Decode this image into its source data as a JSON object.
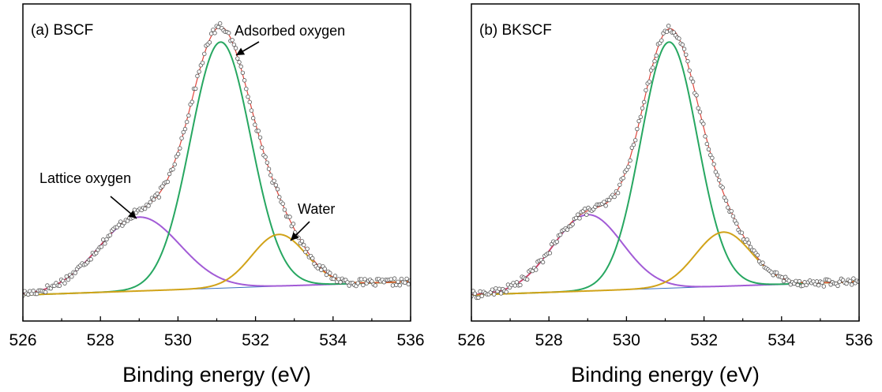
{
  "chart_data": [
    {
      "type": "line",
      "title": "(a) BSCF",
      "xlabel": "Binding energy (eV)",
      "ylabel": "",
      "xlim": [
        526,
        536
      ],
      "x_ticks": [
        "526",
        "528",
        "530",
        "532",
        "534",
        "536"
      ],
      "grid": false,
      "components": [
        {
          "label": "Lattice oxygen",
          "center": 529.0,
          "height": 0.3,
          "width": 1.05,
          "color": "#a25bd6"
        },
        {
          "label": "Adsorbed oxygen",
          "center": 531.1,
          "height": 1.0,
          "width": 0.78,
          "color": "#27a761"
        },
        {
          "label": "Water",
          "center": 532.6,
          "height": 0.21,
          "width": 0.7,
          "color": "#d1a319"
        }
      ],
      "fit_color": "#e0463c",
      "baseline_color": "#3a6fc0",
      "data_marker": "open-circle",
      "annotations": [
        "Lattice oxygen",
        "Adsorbed oxygen",
        "Water"
      ]
    },
    {
      "type": "line",
      "title": "(b) BKSCF",
      "xlabel": "Binding energy (eV)",
      "ylabel": "",
      "xlim": [
        526,
        536
      ],
      "x_ticks": [
        "526",
        "528",
        "530",
        "532",
        "534",
        "536"
      ],
      "grid": false,
      "components": [
        {
          "label": "Lattice oxygen",
          "center": 529.0,
          "height": 0.31,
          "width": 0.9,
          "color": "#a25bd6"
        },
        {
          "label": "Adsorbed oxygen",
          "center": 531.1,
          "height": 1.0,
          "width": 0.73,
          "color": "#27a761"
        },
        {
          "label": "Water",
          "center": 532.5,
          "height": 0.22,
          "width": 0.72,
          "color": "#d1a319"
        }
      ],
      "fit_color": "#e0463c",
      "baseline_color": "#3a6fc0",
      "data_marker": "open-circle",
      "annotations": []
    }
  ]
}
